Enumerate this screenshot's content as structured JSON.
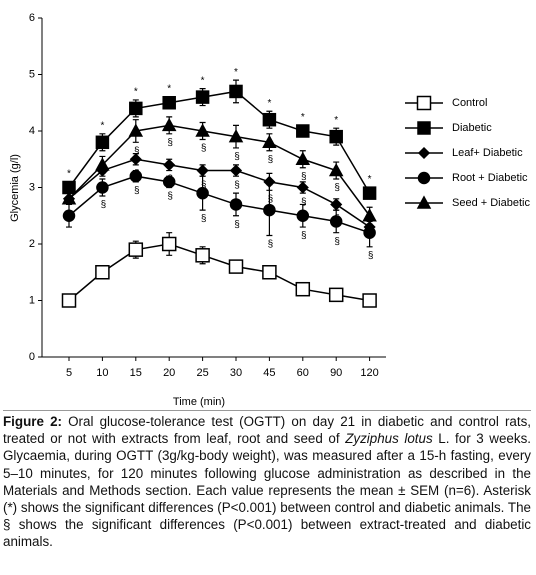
{
  "chart_data": {
    "type": "line",
    "xlabel": "Time (min)",
    "ylabel": "Glycemia (g/l)",
    "categories": [
      "5",
      "10",
      "15",
      "20",
      "25",
      "30",
      "45",
      "60",
      "90",
      "120"
    ],
    "ylim": [
      0,
      6
    ],
    "yticks": [
      0,
      1,
      2,
      3,
      4,
      5,
      6
    ],
    "legend": "right",
    "series": [
      {
        "name": "Control",
        "color": "#000000",
        "marker": "open-square",
        "values": [
          1.0,
          1.5,
          1.9,
          2.0,
          1.8,
          1.6,
          1.5,
          1.2,
          1.1,
          1.0
        ],
        "errors": [
          0.05,
          0.1,
          0.15,
          0.2,
          0.15,
          0.1,
          0.1,
          0.05,
          0.05,
          0.05
        ]
      },
      {
        "name": "Diabetic",
        "color": "#000000",
        "marker": "square",
        "values": [
          3.0,
          3.8,
          4.4,
          4.5,
          4.6,
          4.7,
          4.2,
          4.0,
          3.9,
          2.9
        ],
        "errors": [
          0.1,
          0.15,
          0.15,
          0.1,
          0.15,
          0.2,
          0.15,
          0.1,
          0.15,
          0.1
        ],
        "significance": [
          "*",
          "*",
          "*",
          "*",
          "*",
          "*",
          "*",
          "*",
          "*",
          "*"
        ]
      },
      {
        "name": "Leaf+ Diabetic",
        "color": "#000000",
        "marker": "diamond",
        "values": [
          2.8,
          3.3,
          3.5,
          3.4,
          3.3,
          3.3,
          3.1,
          3.0,
          2.7,
          2.3
        ],
        "errors": [
          0.1,
          0.1,
          0.1,
          0.1,
          0.1,
          0.1,
          0.15,
          0.1,
          0.1,
          0.1
        ],
        "significance": [
          null,
          null,
          "§",
          "§",
          "§",
          "§",
          "§",
          "§",
          "§",
          null
        ]
      },
      {
        "name": "Root + Diabetic",
        "color": "#000000",
        "marker": "circle",
        "values": [
          2.5,
          3.0,
          3.2,
          3.1,
          2.9,
          2.7,
          2.6,
          2.5,
          2.4,
          2.2
        ],
        "errors": [
          0.2,
          0.15,
          0.1,
          0.1,
          0.3,
          0.2,
          0.45,
          0.2,
          0.2,
          0.25
        ],
        "significance": [
          null,
          "§",
          "§",
          "§",
          "§",
          "§",
          "§",
          "§",
          "§",
          "§"
        ]
      },
      {
        "name": "Seed + Diabetic",
        "color": "#000000",
        "marker": "triangle",
        "values": [
          2.8,
          3.4,
          4.0,
          4.1,
          4.0,
          3.9,
          3.8,
          3.5,
          3.3,
          2.5
        ],
        "errors": [
          0.1,
          0.15,
          0.2,
          0.15,
          0.15,
          0.2,
          0.15,
          0.15,
          0.15,
          0.15
        ],
        "significance": [
          null,
          null,
          "§",
          "§",
          "§",
          "§",
          "§",
          "§",
          "§",
          "§"
        ]
      }
    ]
  },
  "caption": {
    "label": "Figure 2:",
    "text_before": " Oral glucose-tolerance test (OGTT) on day 21 in diabetic and control rats, treated or not with extracts from leaf, root and seed of ",
    "italic": "Zyziphus lotus",
    "text_after": " L. for 3 weeks. Glycaemia, during OGTT (3g/kg-body weight), was measured after a 15-h fasting, every 5–10 minutes, for 120 minutes following glucose administration as described in the Materials and Methods section. Each value represents the mean ± SEM (n=6). Asterisk (*) shows the significant differences (P<0.001) between control and diabetic animals. The § shows the significant differences (P<0.001) between extract-treated and diabetic animals."
  }
}
